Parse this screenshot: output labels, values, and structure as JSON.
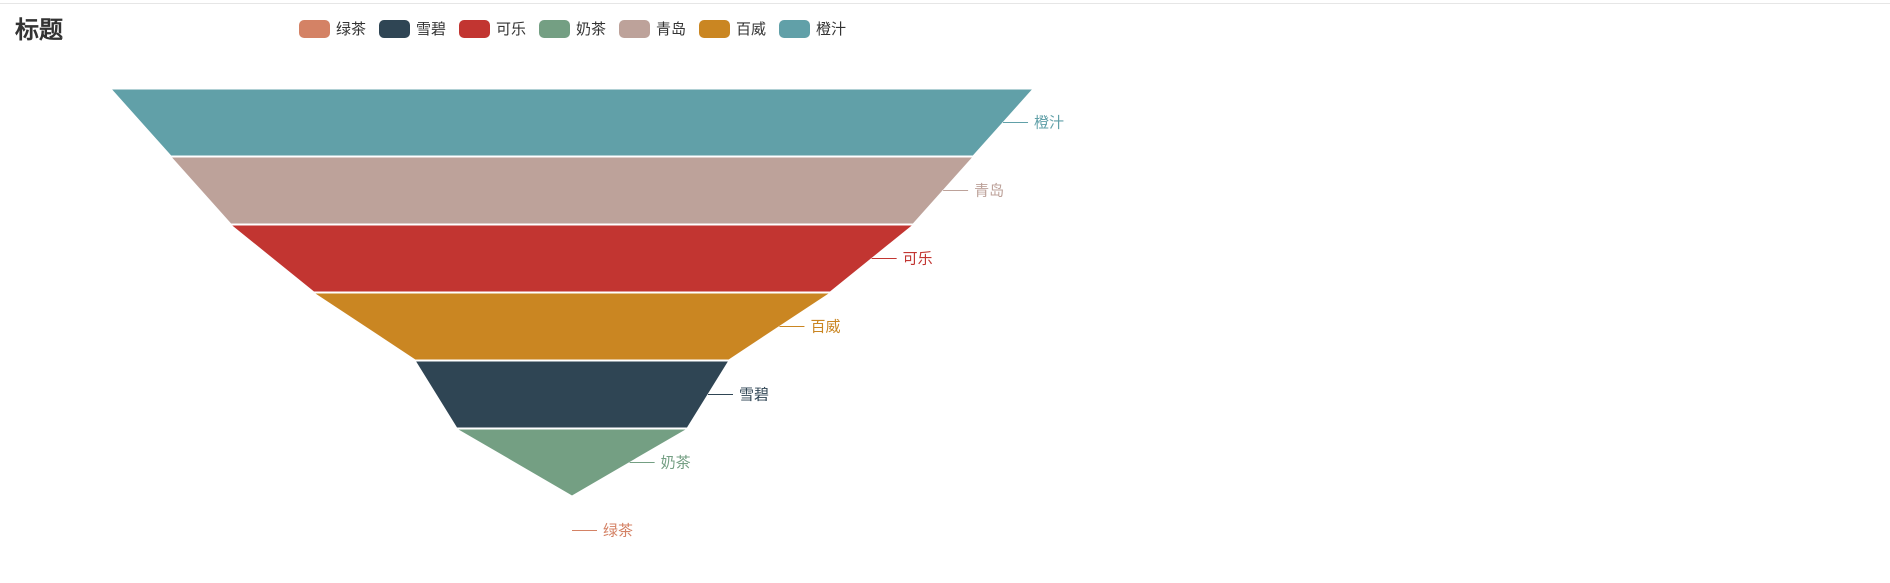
{
  "chart_data": {
    "type": "funnel",
    "title": "标题",
    "categories": [
      "绿茶",
      "雪碧",
      "可乐",
      "奶茶",
      "青岛",
      "百威",
      "橙汁"
    ],
    "colors": {
      "绿茶": "#d48265",
      "雪碧": "#2f4554",
      "可乐": "#c23531",
      "奶茶": "#749f83",
      "青岛": "#bda29a",
      "百威": "#ca8622",
      "橙汁": "#61a0a8"
    },
    "values": {
      "橙汁": 100,
      "青岛": 87,
      "可乐": 74,
      "百威": 56,
      "雪碧": 34,
      "奶茶": 25,
      "绿茶": 0
    },
    "order_top_to_bottom": [
      "橙汁",
      "青岛",
      "可乐",
      "百威",
      "雪碧",
      "奶茶",
      "绿茶"
    ],
    "sort": "descending",
    "legend_position": "top",
    "label_position": "right"
  }
}
